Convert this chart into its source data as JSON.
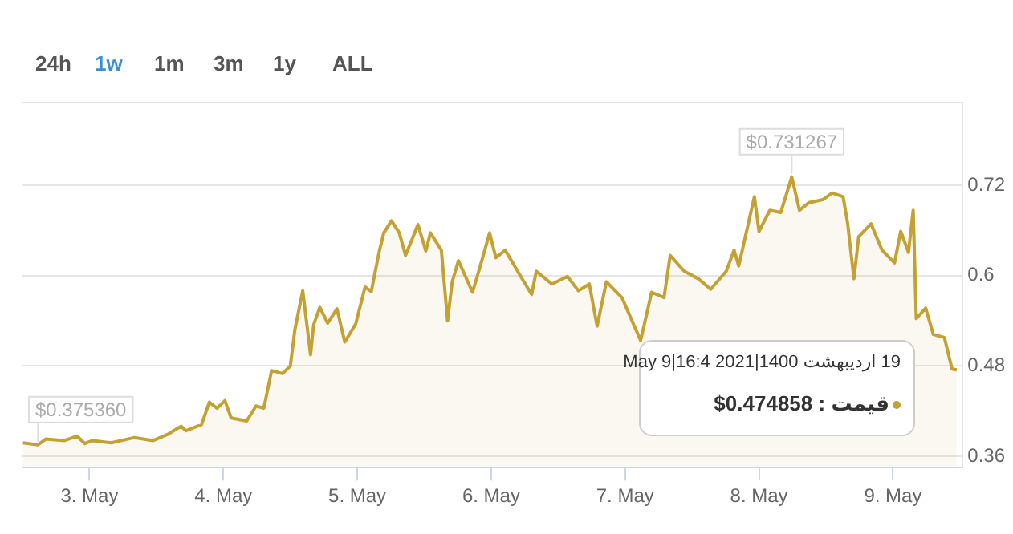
{
  "chart_data": {
    "type": "area",
    "x": [
      "2021-05-02T12:05",
      "2021-05-02T14:47",
      "2021-05-02T16:11",
      "2021-05-02T19:32",
      "2021-05-02T21:46",
      "2021-05-02T23:10",
      "2021-05-03T00:33",
      "2021-05-03T03:54",
      "2021-05-03T08:05",
      "2021-05-03T11:26",
      "2021-05-03T13:57",
      "2021-05-03T16:28",
      "2021-05-03T17:18",
      "2021-05-03T20:05",
      "2021-05-03T21:29",
      "2021-05-03T22:53",
      "2021-05-04T00:17",
      "2021-05-04T01:24",
      "2021-05-04T04:11",
      "2021-05-04T05:52",
      "2021-05-04T07:15",
      "2021-05-04T08:39",
      "2021-05-04T10:36",
      "2021-05-04T12:00",
      "2021-05-04T12:50",
      "2021-05-04T14:14",
      "2021-05-04T15:38",
      "2021-05-04T16:11",
      "2021-05-04T17:18",
      "2021-05-04T18:42",
      "2021-05-04T20:22",
      "2021-05-04T21:46",
      "2021-05-04T23:43",
      "2021-05-05T01:24",
      "2021-05-05T02:31",
      "2021-05-05T03:54",
      "2021-05-05T04:45",
      "2021-05-05T06:08",
      "2021-05-05T07:32",
      "2021-05-05T08:39",
      "2021-05-05T10:53",
      "2021-05-05T12:17",
      "2021-05-05T13:07",
      "2021-05-05T15:04",
      "2021-05-05T16:11",
      "2021-05-05T17:01",
      "2021-05-05T18:08",
      "2021-05-05T20:39",
      "2021-05-05T22:03",
      "2021-05-05T23:43",
      "2021-05-06T00:50",
      "2021-05-06T02:31",
      "2021-05-06T05:18",
      "2021-05-06T07:15",
      "2021-05-06T08:05",
      "2021-05-06T10:53",
      "2021-05-06T13:40",
      "2021-05-06T15:38",
      "2021-05-06T17:35",
      "2021-05-06T18:59",
      "2021-05-06T20:39",
      "2021-05-06T23:26",
      "2021-05-07T02:47",
      "2021-05-07T04:45",
      "2021-05-07T06:59",
      "2021-05-07T08:05",
      "2021-05-07T10:36",
      "2021-05-07T13:07",
      "2021-05-07T15:21",
      "2021-05-07T18:08",
      "2021-05-07T19:32",
      "2021-05-07T20:22",
      "2021-05-07T23:10",
      "2021-05-08T00:00",
      "2021-05-08T01:57",
      "2021-05-08T03:54",
      "2021-05-08T05:52",
      "2021-05-08T07:15",
      "2021-05-08T08:56",
      "2021-05-08T11:26",
      "2021-05-08T13:07",
      "2021-05-08T15:04",
      "2021-05-08T15:54",
      "2021-05-08T17:01",
      "2021-05-08T17:52",
      "2021-05-08T20:05",
      "2021-05-08T22:03",
      "2021-05-09T00:17",
      "2021-05-09T01:24",
      "2021-05-09T02:47",
      "2021-05-09T03:38",
      "2021-05-09T04:11",
      "2021-05-09T05:52",
      "2021-05-09T07:15",
      "2021-05-09T09:13",
      "2021-05-09T10:36",
      "2021-05-09T11:26"
    ],
    "series": [
      {
        "color": "#c4a132",
        "values": [
          0.378,
          0.37536,
          0.383,
          0.381,
          0.387,
          0.377,
          0.381,
          0.378,
          0.385,
          0.381,
          0.389,
          0.4,
          0.394,
          0.402,
          0.432,
          0.424,
          0.434,
          0.411,
          0.407,
          0.427,
          0.424,
          0.474,
          0.47,
          0.48,
          0.529,
          0.58,
          0.495,
          0.535,
          0.558,
          0.537,
          0.556,
          0.512,
          0.536,
          0.585,
          0.579,
          0.631,
          0.657,
          0.673,
          0.657,
          0.627,
          0.668,
          0.633,
          0.657,
          0.634,
          0.54,
          0.592,
          0.62,
          0.578,
          0.613,
          0.657,
          0.624,
          0.634,
          0.599,
          0.575,
          0.606,
          0.589,
          0.599,
          0.58,
          0.589,
          0.533,
          0.592,
          0.571,
          0.514,
          0.578,
          0.571,
          0.627,
          0.606,
          0.596,
          0.582,
          0.606,
          0.634,
          0.613,
          0.705,
          0.659,
          0.687,
          0.684,
          0.731267,
          0.687,
          0.697,
          0.701,
          0.71,
          0.705,
          0.669,
          0.596,
          0.652,
          0.669,
          0.634,
          0.617,
          0.659,
          0.631,
          0.687,
          0.543,
          0.557,
          0.522,
          0.518,
          0.476,
          0.474858
        ]
      }
    ],
    "xlim": [
      "2021-05-02T12:00",
      "2021-05-09T12:30"
    ],
    "xticks": [
      {
        "value": "2021-05-03",
        "label": "3. May"
      },
      {
        "value": "2021-05-04",
        "label": "4. May"
      },
      {
        "value": "2021-05-05",
        "label": "5. May"
      },
      {
        "value": "2021-05-06",
        "label": "6. May"
      },
      {
        "value": "2021-05-07",
        "label": "7. May"
      },
      {
        "value": "2021-05-08",
        "label": "8. May"
      },
      {
        "value": "2021-05-09",
        "label": "9. May"
      }
    ],
    "ylim": [
      0.345,
      0.83
    ],
    "yticks": [
      0.36,
      0.48,
      0.6,
      0.72,
      {
        "value": 0.83,
        "label": null
      }
    ],
    "grid": "y",
    "marker": "none",
    "annotations": [
      "24h",
      "1w",
      "1m",
      "3m",
      "1y",
      "ALL",
      {
        "text": "$0.731267",
        "x": "2021-05-08T05:52",
        "y": 0.731267
      },
      {
        "text": "$0.375360",
        "x": "2021-05-02T14:47",
        "y": 0.37536
      },
      "19 اردیبهشت 1400|2021 May 9|16:4",
      "قیمت : 0.474858$"
    ]
  }
}
